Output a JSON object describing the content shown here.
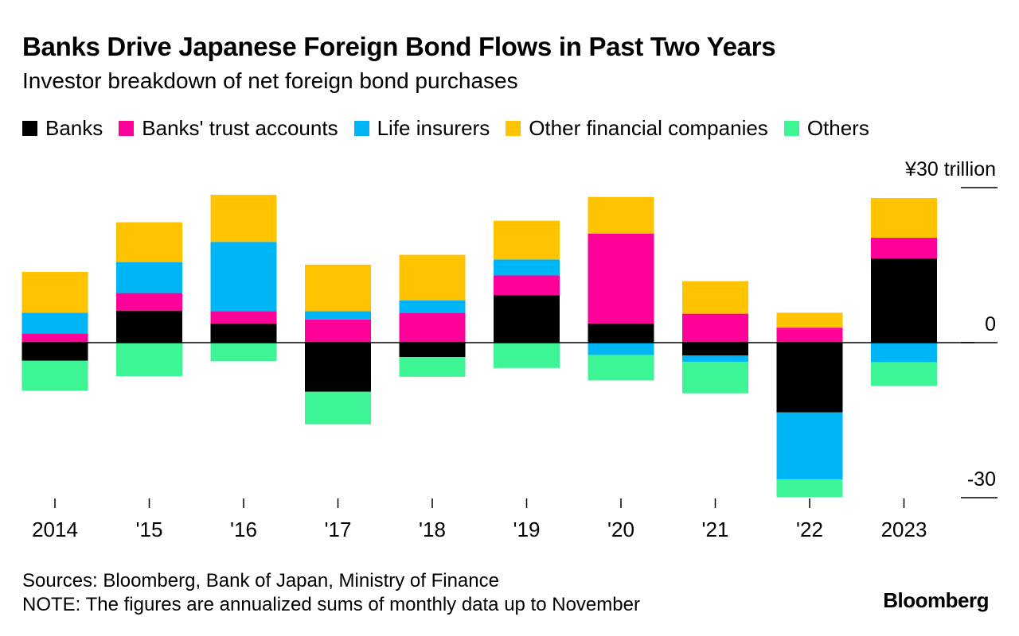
{
  "title": "Banks Drive Japanese Foreign Bond Flows in Past Two Years",
  "subtitle": "Investor breakdown of net foreign bond purchases",
  "footer": {
    "sources": "Sources: Bloomberg, Bank of Japan, Ministry of Finance",
    "note": "NOTE: The figures are annualized sums of monthly data up to November"
  },
  "brand": "Bloomberg",
  "chart_data": {
    "type": "bar",
    "stacked": true,
    "categories": [
      "2014",
      "'15",
      "'16",
      "'17",
      "'18",
      "'19",
      "'20",
      "'21",
      "'22",
      "2023"
    ],
    "y_tick_labels": [
      {
        "value": 30,
        "label": "¥30 trillion"
      },
      {
        "value": 0,
        "label": "0"
      },
      {
        "value": -30,
        "label": "-30"
      }
    ],
    "ylim": [
      -31.5,
      29
    ],
    "y_axis_position": "right",
    "grid": false,
    "legend_position": "top-left",
    "series": [
      {
        "name": "Banks",
        "color": "#000000",
        "values": [
          -3.5,
          6.2,
          3.7,
          -9.5,
          -2.8,
          9.2,
          3.7,
          -2.5,
          -13.5,
          16.3
        ]
      },
      {
        "name": "Banks' trust accounts",
        "color": "#ff0099",
        "values": [
          1.8,
          3.4,
          2.4,
          4.5,
          5.8,
          3.8,
          17.4,
          5.6,
          2.9,
          4.0
        ]
      },
      {
        "name": "Life insurers",
        "color": "#00b5f5",
        "values": [
          4.0,
          6.0,
          13.4,
          1.6,
          2.4,
          3.1,
          -2.4,
          -1.2,
          -13.0,
          -3.8
        ]
      },
      {
        "name": "Other financial companies",
        "color": "#ffc300",
        "values": [
          7.9,
          7.7,
          9.1,
          9.0,
          8.8,
          7.5,
          7.1,
          6.3,
          2.9,
          7.7
        ]
      },
      {
        "name": "Others",
        "color": "#3df595",
        "values": [
          -5.8,
          -6.5,
          -3.6,
          -6.3,
          -3.8,
          -4.9,
          -4.9,
          -6.1,
          -3.4,
          -4.6
        ]
      }
    ]
  }
}
